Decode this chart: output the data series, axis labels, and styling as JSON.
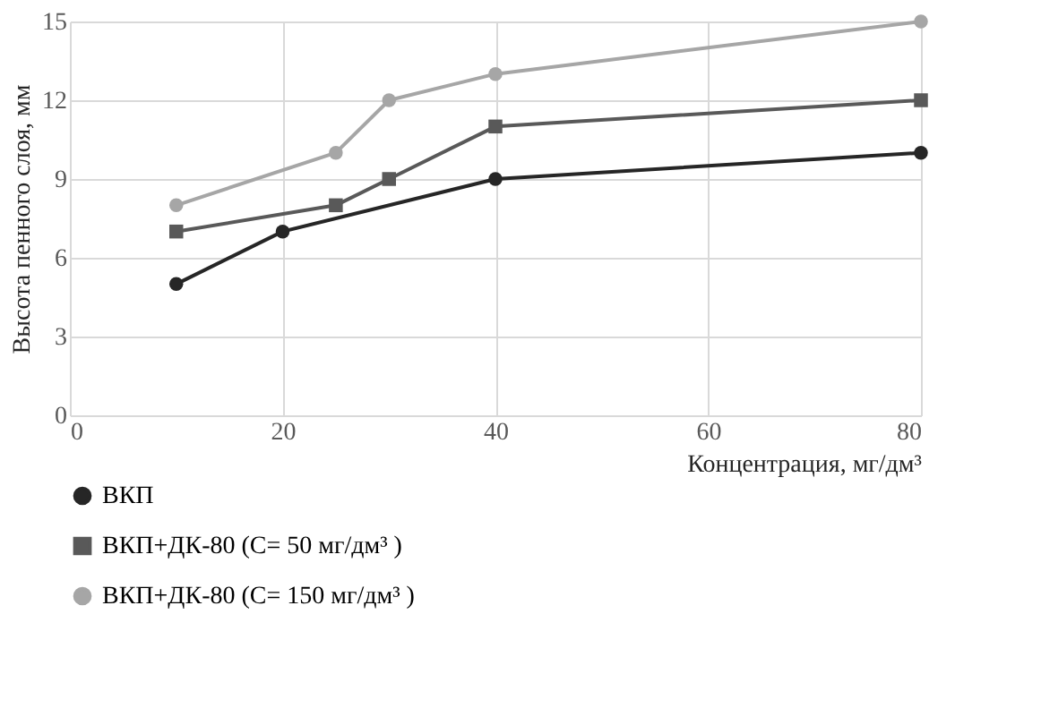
{
  "chart_data": {
    "type": "line",
    "xlabel": "Концентрация, мг/дм³",
    "ylabel": "Высота пенного слоя,  мм",
    "xlim": [
      0,
      80
    ],
    "xticks": [
      0,
      20,
      40,
      60,
      80
    ],
    "ylim": [
      0,
      15
    ],
    "yticks": [
      0,
      3,
      6,
      9,
      12,
      15
    ],
    "grid": true,
    "legend": "bottom",
    "line_style": "solid",
    "series": [
      {
        "name": "ВКП",
        "color": "#262626",
        "marker": "circle",
        "x": [
          10,
          20,
          40,
          80
        ],
        "values": [
          5,
          7,
          9,
          10
        ]
      },
      {
        "name": "ВКП+ДК-80 (С= 50 мг/дм³ )",
        "color": "#595959",
        "marker": "square",
        "x": [
          10,
          25,
          30,
          40,
          80
        ],
        "values": [
          7,
          8,
          9,
          11,
          12
        ]
      },
      {
        "name": "ВКП+ДК-80 (С= 150 мг/дм³ )",
        "color": "#a6a6a6",
        "marker": "circle",
        "x": [
          10,
          25,
          30,
          40,
          80
        ],
        "values": [
          8,
          10,
          12,
          13,
          15
        ]
      }
    ]
  }
}
